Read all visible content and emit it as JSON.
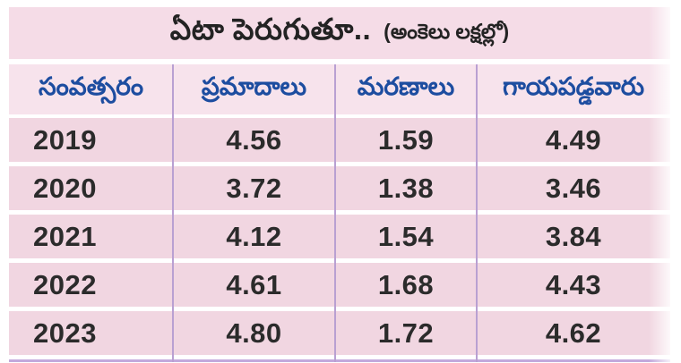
{
  "title": {
    "main": "ఏటా పెరుగుతూ..",
    "note": "(అంకెలు లక్షల్లో)"
  },
  "table": {
    "columns": [
      "సంవత్సరం",
      "ప్రమాదాలు",
      "మరణాలు",
      "గాయపడ్డవారు"
    ],
    "rows": [
      [
        "2019",
        "4.56",
        "1.59",
        "4.49"
      ],
      [
        "2020",
        "3.72",
        "1.38",
        "3.46"
      ],
      [
        "2021",
        "4.12",
        "1.54",
        "3.84"
      ],
      [
        "2022",
        "4.61",
        "1.68",
        "4.43"
      ],
      [
        "2023",
        "4.80",
        "1.72",
        "4.62"
      ]
    ]
  },
  "colors": {
    "title_bg": "#f5dce7",
    "header_bg": "#f7e3ec",
    "row_bg": "#f1d6e1",
    "separator": "#b9a0d2",
    "bottom_line": "#c3a9dc",
    "header_text": "#1d4da0",
    "body_text": "#2b2b2b"
  },
  "chart_data": {
    "type": "table",
    "title": "ఏటా పెరుగుతూ.. (అంకెలు లక్షల్లో)",
    "columns": [
      "సంవత్సరం",
      "ప్రమాదాలు",
      "మరణాలు",
      "గాయపడ్డవారు"
    ],
    "categories": [
      "2019",
      "2020",
      "2021",
      "2022",
      "2023"
    ],
    "series": [
      {
        "name": "ప్రమాదాలు",
        "values": [
          4.56,
          3.72,
          4.12,
          4.61,
          4.8
        ]
      },
      {
        "name": "మరణాలు",
        "values": [
          1.59,
          1.38,
          1.54,
          1.68,
          1.72
        ]
      },
      {
        "name": "గాయపడ్డవారు",
        "values": [
          4.49,
          3.46,
          3.84,
          4.43,
          4.62
        ]
      }
    ]
  }
}
